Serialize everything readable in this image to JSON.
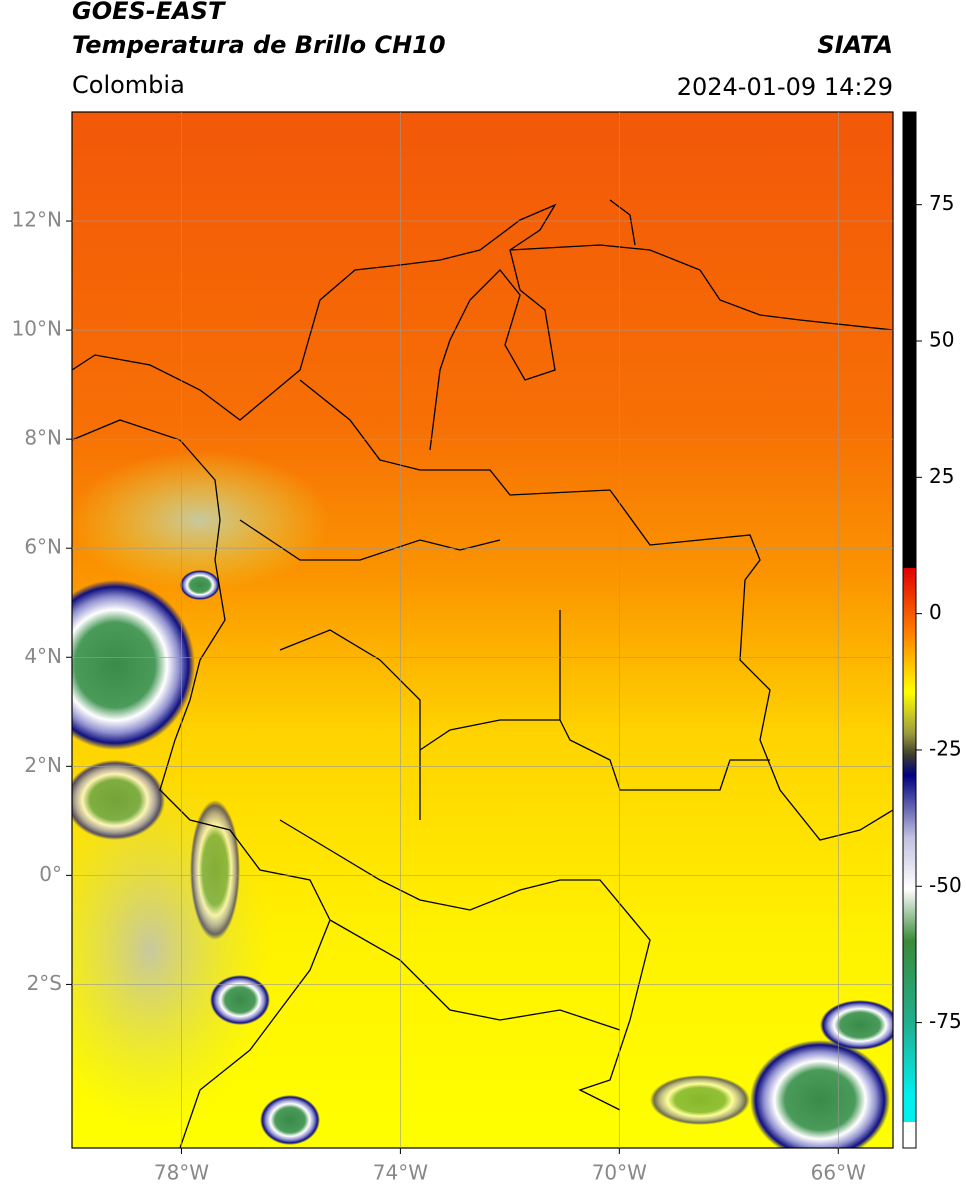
{
  "header": {
    "title": "GOES-EAST",
    "subtitle": "Temperatura de Brillo CH10",
    "source": "SIATA",
    "region": "Colombia",
    "datetime": "2024-01-09 14:29"
  },
  "map": {
    "xlim": [
      -80,
      -65
    ],
    "ylim": [
      -5,
      14
    ],
    "xticks": [
      {
        "value": -78,
        "label": "78°W"
      },
      {
        "value": -74,
        "label": "74°W"
      },
      {
        "value": -70,
        "label": "70°W"
      },
      {
        "value": -66,
        "label": "66°W"
      }
    ],
    "yticks": [
      {
        "value": 12,
        "label": "12°N"
      },
      {
        "value": 10,
        "label": "10°N"
      },
      {
        "value": 8,
        "label": "8°N"
      },
      {
        "value": 6,
        "label": "6°N"
      },
      {
        "value": 4,
        "label": "4°N"
      },
      {
        "value": 2,
        "label": "2°N"
      },
      {
        "value": 0,
        "label": "0°"
      },
      {
        "value": -2,
        "label": "2°S"
      }
    ]
  },
  "colorbar": {
    "lim": [
      -98,
      92
    ],
    "ticks": [
      75,
      50,
      25,
      0,
      -25,
      -50,
      -75
    ]
  }
}
